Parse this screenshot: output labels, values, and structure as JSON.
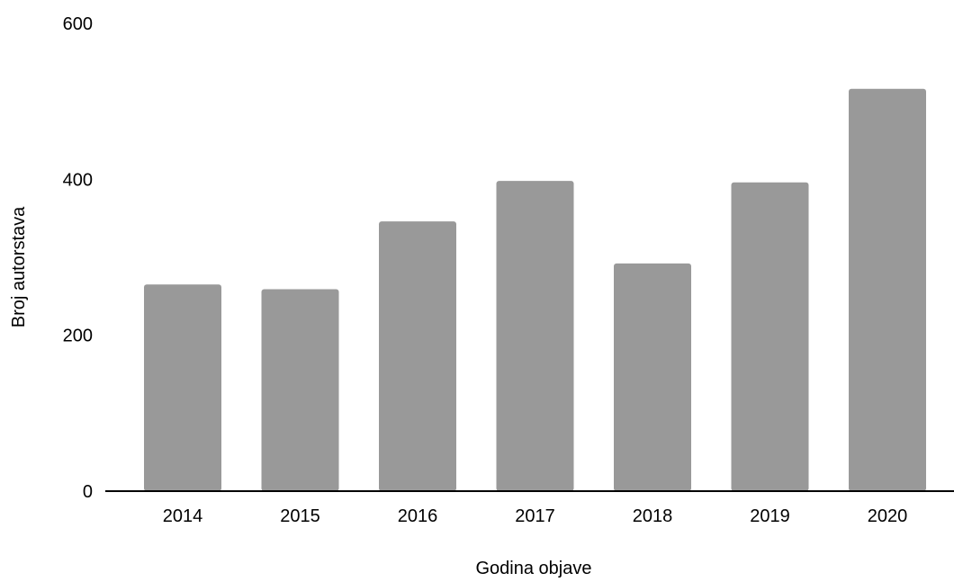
{
  "chart_data": {
    "type": "bar",
    "categories": [
      "2014",
      "2015",
      "2016",
      "2017",
      "2018",
      "2019",
      "2020"
    ],
    "series": [
      {
        "values": [
          265,
          259,
          346,
          398,
          292,
          396,
          516
        ]
      }
    ],
    "title": "",
    "xlabel": "Godina objave",
    "ylabel": "Broj autorstava",
    "ylim": [
      0,
      600
    ],
    "yticks": [
      0,
      200,
      400,
      600
    ],
    "yticklabels": [
      "0",
      "200",
      "400",
      "600"
    ],
    "grid": false,
    "legend": "none"
  },
  "colors": {
    "bar": "#999999",
    "axis": "#000000"
  }
}
